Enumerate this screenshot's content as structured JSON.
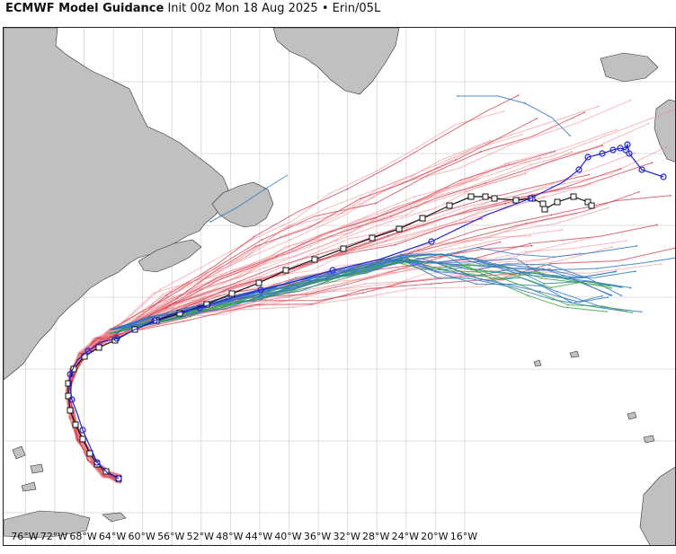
{
  "header": {
    "title_bold": "ECMWF Model Guidance",
    "title_rest": "Init 00z Mon 18 Aug 2025 • Erin/05L"
  },
  "map": {
    "lon_range": [
      -79,
      13
    ],
    "land_color": "#c0c0c0",
    "coast_color": "#303030",
    "grid": true,
    "grid_color": "#dcdcdc",
    "x_tick_labels": [
      "76°W",
      "72°W",
      "68°W",
      "64°W",
      "60°W",
      "56°W",
      "52°W",
      "48°W",
      "44°W",
      "40°W",
      "36°W",
      "32°W",
      "28°W",
      "24°W",
      "20°W",
      "16°W"
    ],
    "x_tick_values": [
      -76,
      -72,
      -68,
      -64,
      -60,
      -56,
      -52,
      -48,
      -44,
      -40,
      -36,
      -32,
      -28,
      -24,
      -20,
      -16
    ]
  },
  "colors": {
    "ensemble_red": "#d03a48",
    "ensemble_pink": "#f08c92",
    "ensemble_blue": "#2f78c4",
    "ensemble_green": "#3aa83a",
    "control_black": "#111111",
    "hres_blue": "#2323d8"
  },
  "icons": {
    "control_marker": "square-marker-icon",
    "hres_marker": "circle-marker-icon"
  }
}
